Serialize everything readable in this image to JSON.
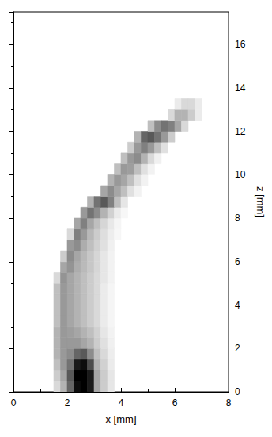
{
  "chart_data": {
    "type": "heatmap",
    "xlabel": "x [mm]",
    "ylabel": "z [mm]",
    "xlim": [
      0,
      8
    ],
    "xticks": [
      0,
      2,
      4,
      6,
      8
    ],
    "ylim": [
      0,
      17.5
    ],
    "yticks": [
      0,
      2,
      4,
      6,
      8,
      10,
      12,
      14,
      16
    ],
    "grid": false,
    "color": [
      "#ffffff",
      "#000000"
    ],
    "intensity_range": [
      0,
      1
    ],
    "cell_size": [
      0.25,
      0.5
    ],
    "cells": [
      [
        1.625,
        0.25,
        0.15
      ],
      [
        1.875,
        0.25,
        0.3
      ],
      [
        2.125,
        0.25,
        0.6
      ],
      [
        2.375,
        0.25,
        0.95
      ],
      [
        2.625,
        0.25,
        1.0
      ],
      [
        2.875,
        0.25,
        0.9
      ],
      [
        3.125,
        0.25,
        0.35
      ],
      [
        3.375,
        0.25,
        0.2
      ],
      [
        3.625,
        0.25,
        0.1
      ],
      [
        1.625,
        0.75,
        0.2
      ],
      [
        1.875,
        0.75,
        0.35
      ],
      [
        2.125,
        0.75,
        0.65
      ],
      [
        2.375,
        0.75,
        1.0
      ],
      [
        2.625,
        0.75,
        1.0
      ],
      [
        2.875,
        0.75,
        0.9
      ],
      [
        3.125,
        0.75,
        0.35
      ],
      [
        3.375,
        0.75,
        0.2
      ],
      [
        3.625,
        0.75,
        0.1
      ],
      [
        1.625,
        1.25,
        0.25
      ],
      [
        1.875,
        1.25,
        0.4
      ],
      [
        2.125,
        1.25,
        0.55
      ],
      [
        2.375,
        1.25,
        0.9
      ],
      [
        2.625,
        1.25,
        0.95
      ],
      [
        2.875,
        1.25,
        0.7
      ],
      [
        3.125,
        1.25,
        0.3
      ],
      [
        3.375,
        1.25,
        0.18
      ],
      [
        3.625,
        1.25,
        0.08
      ],
      [
        1.625,
        1.75,
        0.3
      ],
      [
        1.875,
        1.75,
        0.4
      ],
      [
        2.125,
        1.75,
        0.45
      ],
      [
        2.375,
        1.75,
        0.6
      ],
      [
        2.625,
        1.75,
        0.65
      ],
      [
        2.875,
        1.75,
        0.45
      ],
      [
        3.125,
        1.75,
        0.25
      ],
      [
        3.375,
        1.75,
        0.15
      ],
      [
        3.625,
        1.75,
        0.07
      ],
      [
        1.625,
        2.25,
        0.3
      ],
      [
        1.875,
        2.25,
        0.4
      ],
      [
        2.125,
        2.25,
        0.4
      ],
      [
        2.375,
        2.25,
        0.4
      ],
      [
        2.625,
        2.25,
        0.35
      ],
      [
        2.875,
        2.25,
        0.3
      ],
      [
        3.125,
        2.25,
        0.2
      ],
      [
        3.375,
        2.25,
        0.12
      ],
      [
        3.625,
        2.25,
        0.06
      ],
      [
        1.625,
        2.75,
        0.3
      ],
      [
        1.875,
        2.75,
        0.4
      ],
      [
        2.125,
        2.75,
        0.38
      ],
      [
        2.375,
        2.75,
        0.35
      ],
      [
        2.625,
        2.75,
        0.3
      ],
      [
        2.875,
        2.75,
        0.25
      ],
      [
        3.125,
        2.75,
        0.18
      ],
      [
        3.375,
        2.75,
        0.1
      ],
      [
        3.625,
        2.75,
        0.05
      ],
      [
        1.625,
        3.25,
        0.25
      ],
      [
        1.875,
        3.25,
        0.4
      ],
      [
        2.125,
        3.25,
        0.35
      ],
      [
        2.375,
        3.25,
        0.3
      ],
      [
        2.625,
        3.25,
        0.25
      ],
      [
        2.875,
        3.25,
        0.2
      ],
      [
        3.125,
        3.25,
        0.15
      ],
      [
        3.375,
        3.25,
        0.08
      ],
      [
        3.625,
        3.25,
        0.04
      ],
      [
        1.625,
        3.75,
        0.25
      ],
      [
        1.875,
        3.75,
        0.4
      ],
      [
        2.125,
        3.75,
        0.35
      ],
      [
        2.375,
        3.75,
        0.3
      ],
      [
        2.625,
        3.75,
        0.25
      ],
      [
        2.875,
        3.75,
        0.2
      ],
      [
        3.125,
        3.75,
        0.15
      ],
      [
        3.375,
        3.75,
        0.08
      ],
      [
        3.625,
        3.75,
        0.04
      ],
      [
        1.625,
        4.25,
        0.25
      ],
      [
        1.875,
        4.25,
        0.4
      ],
      [
        2.125,
        4.25,
        0.35
      ],
      [
        2.375,
        4.25,
        0.3
      ],
      [
        2.625,
        4.25,
        0.25
      ],
      [
        2.875,
        4.25,
        0.2
      ],
      [
        3.125,
        4.25,
        0.15
      ],
      [
        3.375,
        4.25,
        0.08
      ],
      [
        3.625,
        4.25,
        0.04
      ],
      [
        1.625,
        4.75,
        0.25
      ],
      [
        1.875,
        4.75,
        0.4
      ],
      [
        2.125,
        4.75,
        0.35
      ],
      [
        2.375,
        4.75,
        0.3
      ],
      [
        2.625,
        4.75,
        0.25
      ],
      [
        2.875,
        4.75,
        0.2
      ],
      [
        3.125,
        4.75,
        0.15
      ],
      [
        3.375,
        4.75,
        0.08
      ],
      [
        3.625,
        4.75,
        0.04
      ],
      [
        1.625,
        5.25,
        0.15
      ],
      [
        1.875,
        5.25,
        0.42
      ],
      [
        2.125,
        5.25,
        0.35
      ],
      [
        2.375,
        5.25,
        0.3
      ],
      [
        2.625,
        5.25,
        0.25
      ],
      [
        2.875,
        5.25,
        0.2
      ],
      [
        3.125,
        5.25,
        0.15
      ],
      [
        3.375,
        5.25,
        0.1
      ],
      [
        3.625,
        5.25,
        0.05
      ],
      [
        1.875,
        5.75,
        0.35
      ],
      [
        2.125,
        5.75,
        0.42
      ],
      [
        2.375,
        5.75,
        0.32
      ],
      [
        2.625,
        5.75,
        0.27
      ],
      [
        2.875,
        5.75,
        0.22
      ],
      [
        3.125,
        5.75,
        0.16
      ],
      [
        3.375,
        5.75,
        0.1
      ],
      [
        3.625,
        5.75,
        0.05
      ],
      [
        1.875,
        6.25,
        0.2
      ],
      [
        2.125,
        6.25,
        0.45
      ],
      [
        2.375,
        6.25,
        0.35
      ],
      [
        2.625,
        6.25,
        0.28
      ],
      [
        2.875,
        6.25,
        0.22
      ],
      [
        3.125,
        6.25,
        0.16
      ],
      [
        3.375,
        6.25,
        0.1
      ],
      [
        3.625,
        6.25,
        0.05
      ],
      [
        2.125,
        6.75,
        0.4
      ],
      [
        2.375,
        6.75,
        0.45
      ],
      [
        2.625,
        6.75,
        0.32
      ],
      [
        2.875,
        6.75,
        0.25
      ],
      [
        3.125,
        6.75,
        0.18
      ],
      [
        3.375,
        6.75,
        0.12
      ],
      [
        3.625,
        6.75,
        0.06
      ],
      [
        2.125,
        7.25,
        0.15
      ],
      [
        2.375,
        7.25,
        0.5
      ],
      [
        2.625,
        7.25,
        0.4
      ],
      [
        2.875,
        7.25,
        0.28
      ],
      [
        3.125,
        7.25,
        0.2
      ],
      [
        3.375,
        7.25,
        0.13
      ],
      [
        3.625,
        7.25,
        0.07
      ],
      [
        3.875,
        7.25,
        0.03
      ],
      [
        2.375,
        7.75,
        0.35
      ],
      [
        2.625,
        7.75,
        0.5
      ],
      [
        2.875,
        7.75,
        0.35
      ],
      [
        3.125,
        7.75,
        0.25
      ],
      [
        3.375,
        7.75,
        0.16
      ],
      [
        3.625,
        7.75,
        0.09
      ],
      [
        3.875,
        7.75,
        0.04
      ],
      [
        2.625,
        8.25,
        0.4
      ],
      [
        2.875,
        8.25,
        0.55
      ],
      [
        3.125,
        8.25,
        0.45
      ],
      [
        3.375,
        8.25,
        0.3
      ],
      [
        3.625,
        8.25,
        0.18
      ],
      [
        3.875,
        8.25,
        0.08
      ],
      [
        4.125,
        8.25,
        0.03
      ],
      [
        2.875,
        8.75,
        0.3
      ],
      [
        3.125,
        8.75,
        0.55
      ],
      [
        3.375,
        8.75,
        0.65
      ],
      [
        3.625,
        8.75,
        0.5
      ],
      [
        3.875,
        8.75,
        0.25
      ],
      [
        4.125,
        8.75,
        0.1
      ],
      [
        3.375,
        9.25,
        0.35
      ],
      [
        3.625,
        9.25,
        0.45
      ],
      [
        3.875,
        9.25,
        0.35
      ],
      [
        4.125,
        9.25,
        0.25
      ],
      [
        4.375,
        9.25,
        0.12
      ],
      [
        4.625,
        9.25,
        0.05
      ],
      [
        3.625,
        9.75,
        0.3
      ],
      [
        3.875,
        9.75,
        0.4
      ],
      [
        4.125,
        9.75,
        0.35
      ],
      [
        4.375,
        9.75,
        0.25
      ],
      [
        4.625,
        9.75,
        0.12
      ],
      [
        4.875,
        9.75,
        0.05
      ],
      [
        3.875,
        10.25,
        0.25
      ],
      [
        4.125,
        10.25,
        0.4
      ],
      [
        4.375,
        10.25,
        0.38
      ],
      [
        4.625,
        10.25,
        0.25
      ],
      [
        4.875,
        10.25,
        0.12
      ],
      [
        5.125,
        10.25,
        0.05
      ],
      [
        4.125,
        10.75,
        0.25
      ],
      [
        4.375,
        10.75,
        0.4
      ],
      [
        4.625,
        10.75,
        0.45
      ],
      [
        4.875,
        10.75,
        0.3
      ],
      [
        5.125,
        10.75,
        0.15
      ],
      [
        5.375,
        10.75,
        0.06
      ],
      [
        4.375,
        11.25,
        0.2
      ],
      [
        4.625,
        11.25,
        0.4
      ],
      [
        4.875,
        11.25,
        0.5
      ],
      [
        5.125,
        11.25,
        0.4
      ],
      [
        5.375,
        11.25,
        0.25
      ],
      [
        5.625,
        11.25,
        0.12
      ],
      [
        4.625,
        11.75,
        0.3
      ],
      [
        4.875,
        11.75,
        0.6
      ],
      [
        5.125,
        11.75,
        0.65
      ],
      [
        5.375,
        11.75,
        0.55
      ],
      [
        5.625,
        11.75,
        0.4
      ],
      [
        5.875,
        11.75,
        0.2
      ],
      [
        5.125,
        12.25,
        0.25
      ],
      [
        5.375,
        12.25,
        0.45
      ],
      [
        5.625,
        12.25,
        0.55
      ],
      [
        5.875,
        12.25,
        0.5
      ],
      [
        6.125,
        12.25,
        0.35
      ],
      [
        6.375,
        12.25,
        0.15
      ],
      [
        5.875,
        12.75,
        0.15
      ],
      [
        6.125,
        12.75,
        0.3
      ],
      [
        6.375,
        12.75,
        0.3
      ],
      [
        6.625,
        12.75,
        0.2
      ],
      [
        6.875,
        12.75,
        0.08
      ],
      [
        6.125,
        13.25,
        0.08
      ],
      [
        6.375,
        13.25,
        0.15
      ],
      [
        6.625,
        13.25,
        0.15
      ],
      [
        6.875,
        13.25,
        0.08
      ]
    ]
  }
}
